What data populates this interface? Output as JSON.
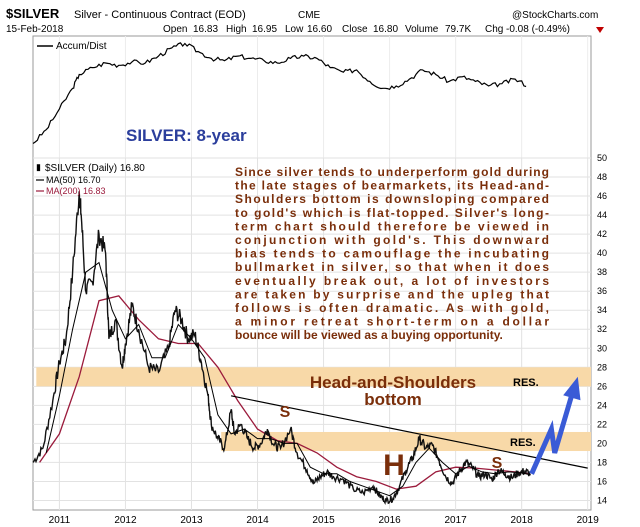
{
  "header": {
    "symbol": "$SILVER",
    "name": "Silver - Continuous Contract (EOD)",
    "exchange": "CME",
    "source": "@StockCharts.com",
    "date": "15-Feb-2018",
    "open_label": "Open",
    "open": "16.83",
    "high_label": "High",
    "high": "16.95",
    "low_label": "Low",
    "low": "16.60",
    "close_label": "Close",
    "close": "16.80",
    "volume_label": "Volume",
    "volume": "79.7K",
    "chg_label": "Chg",
    "chg": "-0.08 (-0.49%)"
  },
  "upper_panel": {
    "indicator_label": "Accum/Dist",
    "title": "SILVER: 8-year"
  },
  "legend": {
    "price": "$SILVER (Daily) 16.80",
    "ma50": "MA(50) 16.70",
    "ma200": "MA(200) 16.83"
  },
  "commentary": [
    "Since silver tends to underperform gold during",
    "the late stages of bearmarkets, its Head-and-",
    "Shoulders bottom is downsloping compared",
    "to gold's which is flat-topped. Silver's long-",
    "term chart should therefore be viewed in",
    "conjunction with gold's. This downward",
    "bias tends to camouflage the incubating",
    "bullmarket in silver, so that when it does",
    "eventually break out, a lot of investors",
    "are taken by surprise and the upleg that",
    "follows is often dramatic. As with gold,",
    "a minor retreat short-term on a dollar",
    "bounce will be viewed as a buying opportunity."
  ],
  "annotations": {
    "pattern_line1": "Head-and-Shoulders",
    "pattern_line2": "bottom",
    "res_upper": "RES.",
    "res_lower": "RES.",
    "left_shoulder": "S",
    "head": "H",
    "right_shoulder": "S"
  },
  "colors": {
    "price": "#111111",
    "ma50": "#000000",
    "ma200": "#9b1b3c",
    "resistance_band": "#f8d9a8",
    "arrow": "#3a5bd6",
    "annotation": "#7a2e0a",
    "title": "#2b3e9c"
  },
  "chart_data": {
    "type": "line",
    "x_axis": {
      "range": [
        2010.6,
        2019.05
      ],
      "tick_labels": [
        "2011",
        "2012",
        "2013",
        "2014",
        "2015",
        "2016",
        "2017",
        "2018",
        "2019"
      ],
      "ticks": [
        2011,
        2012,
        2013,
        2014,
        2015,
        2016,
        2017,
        2018,
        2019
      ]
    },
    "y_axis": {
      "range": [
        13,
        50
      ],
      "tick_labels": [
        "14",
        "16",
        "18",
        "20",
        "22",
        "24",
        "26",
        "28",
        "30",
        "32",
        "34",
        "36",
        "38",
        "40",
        "42",
        "44",
        "46",
        "48",
        "50"
      ],
      "ticks": [
        14,
        16,
        18,
        20,
        22,
        24,
        26,
        28,
        30,
        32,
        34,
        36,
        38,
        40,
        42,
        44,
        46,
        48,
        50
      ],
      "side": "right",
      "grid": true
    },
    "price_series": {
      "x": [
        2010.6,
        2010.75,
        2010.9,
        2011.0,
        2011.1,
        2011.2,
        2011.3,
        2011.33,
        2011.4,
        2011.5,
        2011.6,
        2011.7,
        2011.75,
        2011.85,
        2011.95,
        2012.0,
        2012.1,
        2012.2,
        2012.35,
        2012.5,
        2012.65,
        2012.75,
        2012.85,
        2012.95,
        2013.05,
        2013.15,
        2013.25,
        2013.3,
        2013.4,
        2013.5,
        2013.6,
        2013.65,
        2013.75,
        2013.85,
        2013.95,
        2014.05,
        2014.15,
        2014.25,
        2014.35,
        2014.5,
        2014.6,
        2014.75,
        2014.85,
        2014.95,
        2015.05,
        2015.15,
        2015.3,
        2015.45,
        2015.6,
        2015.75,
        2015.85,
        2015.95,
        2016.05,
        2016.15,
        2016.25,
        2016.35,
        2016.45,
        2016.55,
        2016.65,
        2016.75,
        2016.85,
        2016.95,
        2017.05,
        2017.15,
        2017.25,
        2017.35,
        2017.45,
        2017.55,
        2017.65,
        2017.75,
        2017.85,
        2017.95,
        2018.05,
        2018.13
      ],
      "y": [
        18.0,
        19.5,
        24.5,
        28.5,
        31.0,
        38.0,
        46.5,
        44.0,
        36.0,
        37.0,
        42.0,
        40.0,
        31.0,
        33.0,
        28.0,
        30.5,
        34.5,
        32.0,
        28.0,
        27.5,
        30.0,
        34.0,
        33.0,
        31.0,
        31.5,
        28.5,
        25.0,
        22.0,
        20.5,
        19.5,
        23.5,
        21.0,
        22.0,
        20.5,
        19.5,
        20.0,
        21.5,
        19.8,
        19.5,
        21.5,
        19.0,
        17.2,
        15.8,
        16.5,
        17.0,
        16.5,
        16.2,
        15.2,
        14.8,
        15.5,
        14.5,
        14.0,
        14.2,
        15.5,
        17.2,
        18.5,
        20.5,
        19.5,
        19.8,
        18.2,
        16.5,
        15.8,
        17.0,
        18.0,
        17.5,
        16.5,
        16.8,
        16.2,
        17.2,
        16.8,
        16.4,
        16.9,
        17.1,
        16.8
      ]
    },
    "ma50_series": {
      "x": [
        2010.8,
        2011.0,
        2011.2,
        2011.4,
        2011.6,
        2011.8,
        2012.0,
        2012.2,
        2012.4,
        2012.6,
        2012.8,
        2013.0,
        2013.2,
        2013.4,
        2013.6,
        2013.8,
        2014.0,
        2014.2,
        2014.4,
        2014.6,
        2014.8,
        2015.0,
        2015.2,
        2015.4,
        2015.6,
        2015.8,
        2016.0,
        2016.2,
        2016.4,
        2016.6,
        2016.8,
        2017.0,
        2017.2,
        2017.4,
        2017.6,
        2017.8,
        2018.0,
        2018.13
      ],
      "y": [
        19.0,
        25.0,
        32.0,
        38.0,
        39.0,
        34.0,
        31.0,
        32.5,
        29.0,
        29.0,
        32.5,
        31.0,
        29.0,
        23.0,
        21.0,
        21.5,
        20.5,
        20.5,
        20.0,
        20.0,
        17.5,
        16.8,
        16.8,
        16.0,
        15.5,
        15.0,
        14.5,
        15.5,
        18.0,
        19.5,
        18.0,
        16.8,
        17.6,
        17.0,
        16.8,
        17.0,
        16.9,
        16.7
      ]
    },
    "ma200_series": {
      "x": [
        2010.7,
        2011.0,
        2011.3,
        2011.6,
        2011.9,
        2012.2,
        2012.5,
        2012.8,
        2013.1,
        2013.4,
        2013.7,
        2014.0,
        2014.3,
        2014.6,
        2014.9,
        2015.2,
        2015.5,
        2015.8,
        2016.1,
        2016.4,
        2016.7,
        2017.0,
        2017.3,
        2017.6,
        2017.9,
        2018.13
      ],
      "y": [
        18.0,
        21.0,
        27.0,
        35.0,
        35.5,
        33.0,
        31.0,
        30.5,
        30.5,
        28.0,
        24.5,
        21.5,
        20.3,
        20.0,
        19.0,
        17.5,
        16.5,
        16.0,
        15.2,
        15.5,
        17.0,
        17.5,
        17.4,
        17.2,
        17.0,
        16.8
      ]
    },
    "downtrend_line": {
      "x": [
        2013.6,
        2019.0
      ],
      "y": [
        25.0,
        17.4
      ]
    },
    "resistance_zones": [
      {
        "y_low": 26.0,
        "y_high": 28.0,
        "x_start": 2010.65,
        "label": "RES."
      },
      {
        "y_low": 19.2,
        "y_high": 21.2,
        "x_start": 2013.45,
        "label": "RES."
      }
    ],
    "projection_arrow": {
      "x": [
        2018.15,
        2018.45,
        2018.5,
        2018.85
      ],
      "y": [
        16.8,
        21.5,
        19.0,
        27.0
      ]
    },
    "accum_dist_series": {
      "x": [
        2010.6,
        2010.8,
        2011.0,
        2011.2,
        2011.3,
        2011.5,
        2011.7,
        2011.9,
        2012.1,
        2012.3,
        2012.5,
        2012.7,
        2012.9,
        2013.1,
        2013.3,
        2013.5,
        2013.7,
        2013.9,
        2014.1,
        2014.3,
        2014.5,
        2014.7,
        2014.9,
        2015.1,
        2015.3,
        2015.5,
        2015.7,
        2015.9,
        2016.1,
        2016.3,
        2016.5,
        2016.7,
        2016.9,
        2017.1,
        2017.3,
        2017.5,
        2017.7,
        2017.9,
        2018.1
      ],
      "y": [
        10,
        22,
        40,
        58,
        70,
        76,
        80,
        78,
        81,
        80,
        86,
        93,
        97,
        90,
        84,
        82,
        86,
        84,
        82,
        80,
        84,
        86,
        84,
        76,
        72,
        74,
        64,
        58,
        60,
        66,
        74,
        70,
        64,
        68,
        64,
        60,
        62,
        66,
        60
      ]
    }
  }
}
